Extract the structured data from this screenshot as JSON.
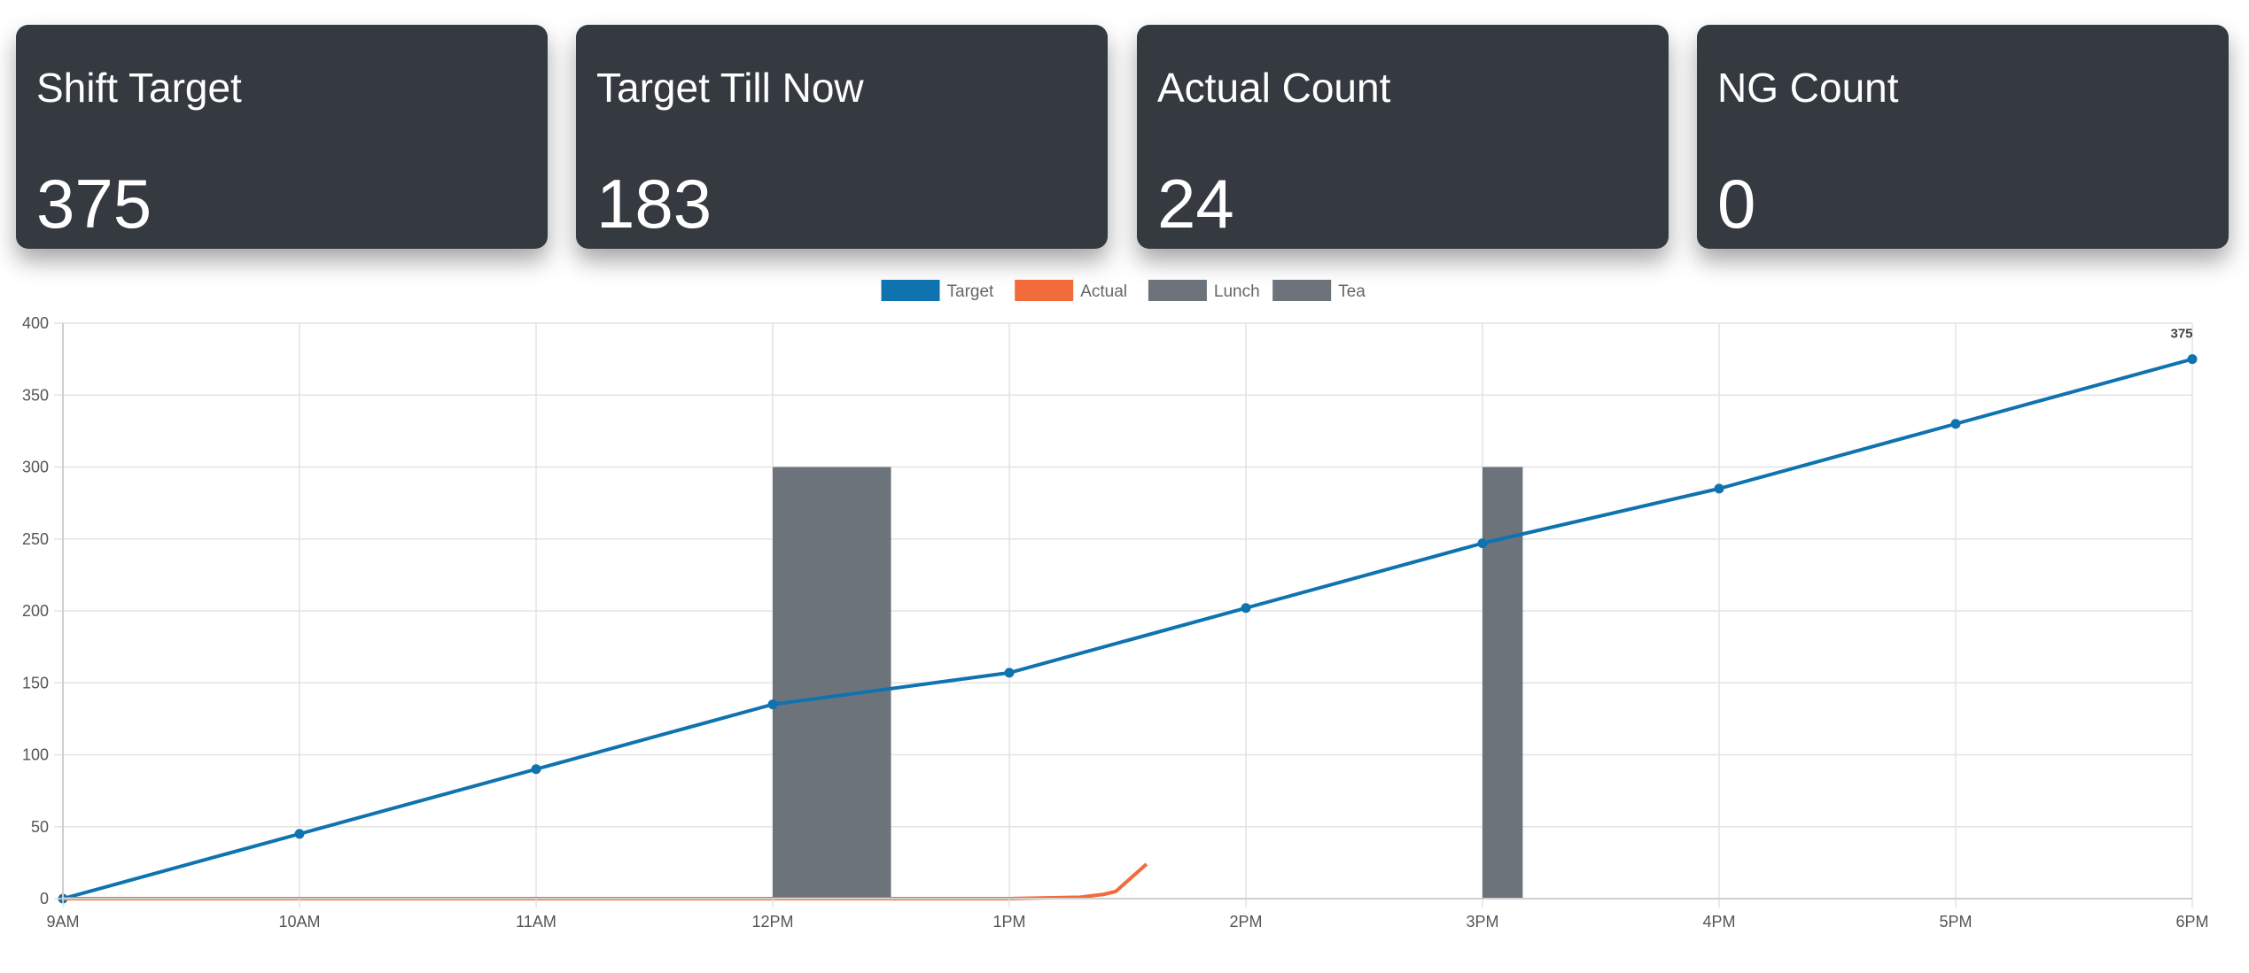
{
  "cards": [
    {
      "title": "Shift Target",
      "value": "375"
    },
    {
      "title": "Target Till Now",
      "value": "183"
    },
    {
      "title": "Actual Count",
      "value": "24"
    },
    {
      "title": "NG Count",
      "value": "0"
    }
  ],
  "colors": {
    "card_bg": "#343a40",
    "target": "#0f73b0",
    "actual": "#f26b3a",
    "break": "#6c737b",
    "grid": "#e3e3e3",
    "tick_text": "#555555"
  },
  "chart_data": {
    "type": "line",
    "x_categories": [
      "9AM",
      "10AM",
      "11AM",
      "12PM",
      "1PM",
      "2PM",
      "3PM",
      "4PM",
      "5PM",
      "6PM"
    ],
    "ylim": [
      0,
      400
    ],
    "y_ticks": [
      "0",
      "50",
      "100",
      "150",
      "200",
      "250",
      "300",
      "350",
      "400"
    ],
    "grid": true,
    "legend": {
      "position": "top-center",
      "items": [
        {
          "label": "Target",
          "color": "#0f73b0"
        },
        {
          "label": "Actual",
          "color": "#f26b3a"
        },
        {
          "label": "Lunch",
          "color": "#6c737b"
        },
        {
          "label": "Tea",
          "color": "#6c737b"
        }
      ]
    },
    "series": [
      {
        "name": "Target",
        "type": "line",
        "points": [
          [
            0,
            0
          ],
          [
            1,
            45
          ],
          [
            2,
            90
          ],
          [
            3,
            135
          ],
          [
            4,
            157
          ],
          [
            5,
            202
          ],
          [
            6,
            247
          ],
          [
            7,
            285
          ],
          [
            8,
            330
          ],
          [
            9,
            375
          ]
        ],
        "end_label": "375"
      },
      {
        "name": "Actual",
        "type": "line",
        "points": [
          [
            0,
            0
          ],
          [
            1,
            0
          ],
          [
            2,
            0
          ],
          [
            3,
            0
          ],
          [
            4,
            0
          ],
          [
            4.3,
            1
          ],
          [
            4.4,
            3
          ],
          [
            4.45,
            5
          ],
          [
            4.58,
            24
          ]
        ]
      },
      {
        "name": "Lunch",
        "type": "bar",
        "x_start": 3,
        "x_end": 3.5,
        "value": 300
      },
      {
        "name": "Tea",
        "type": "bar",
        "x_start": 6,
        "x_end": 6.17,
        "value": 300
      }
    ]
  }
}
